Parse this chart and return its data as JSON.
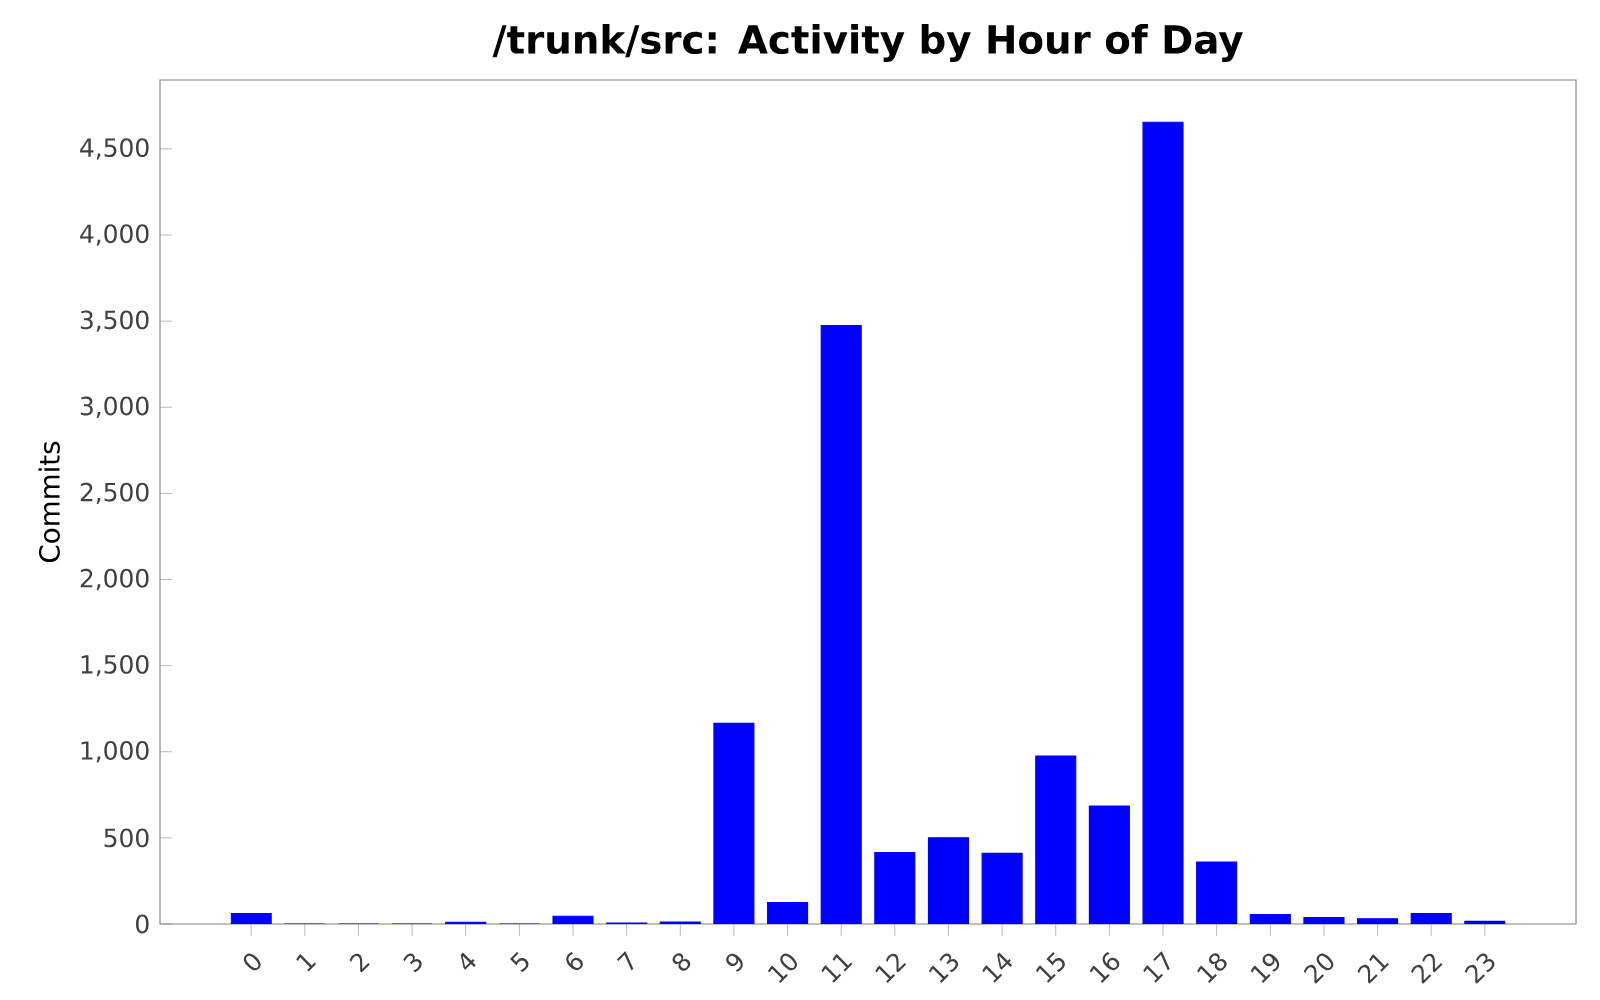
{
  "chart_data": {
    "type": "bar",
    "title": "/trunk/src: Activity by Hour of Day",
    "ylabel": "Commits",
    "categories": [
      "0",
      "1",
      "2",
      "3",
      "4",
      "5",
      "6",
      "7",
      "8",
      "9",
      "10",
      "11",
      "12",
      "13",
      "14",
      "15",
      "16",
      "17",
      "18",
      "19",
      "20",
      "21",
      "22",
      "23"
    ],
    "values": [
      60,
      0,
      0,
      0,
      10,
      0,
      45,
      5,
      12,
      1165,
      125,
      3475,
      415,
      500,
      410,
      975,
      685,
      4655,
      360,
      55,
      38,
      30,
      60,
      15
    ],
    "color": "#0000ff",
    "ylim": [
      0,
      4900
    ],
    "yticks": [
      {
        "value": 0,
        "label": "0"
      },
      {
        "value": 500,
        "label": "500"
      },
      {
        "value": 1000,
        "label": "1,000"
      },
      {
        "value": 1500,
        "label": "1,500"
      },
      {
        "value": 2000,
        "label": "2,000"
      },
      {
        "value": 2500,
        "label": "2,500"
      },
      {
        "value": 3000,
        "label": "3,000"
      },
      {
        "value": 3500,
        "label": "3,500"
      },
      {
        "value": 4000,
        "label": "4,000"
      },
      {
        "value": 4500,
        "label": "4,500"
      }
    ],
    "grid": false
  }
}
